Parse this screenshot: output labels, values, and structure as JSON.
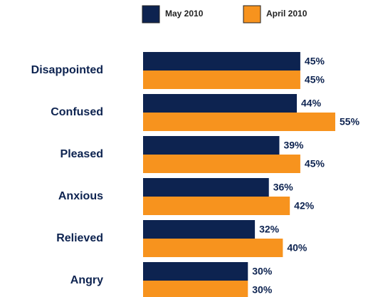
{
  "chart_data": {
    "type": "hbar",
    "categories": [
      "Disappointed",
      "Confused",
      "Pleased",
      "Anxious",
      "Relieved",
      "Angry"
    ],
    "series": [
      {
        "name": "May 2010",
        "color": "#0d2350",
        "values": [
          45,
          44,
          39,
          36,
          32,
          30
        ],
        "value_labels": [
          "45%",
          "44%",
          "39%",
          "36%",
          "32%",
          "30%"
        ]
      },
      {
        "name": "April 2010",
        "color": "#f7931e",
        "values": [
          45,
          55,
          45,
          42,
          40,
          30
        ],
        "value_labels": [
          "45%",
          "55%",
          "45%",
          "42%",
          "40%",
          "30%"
        ]
      }
    ],
    "legend": "top"
  }
}
